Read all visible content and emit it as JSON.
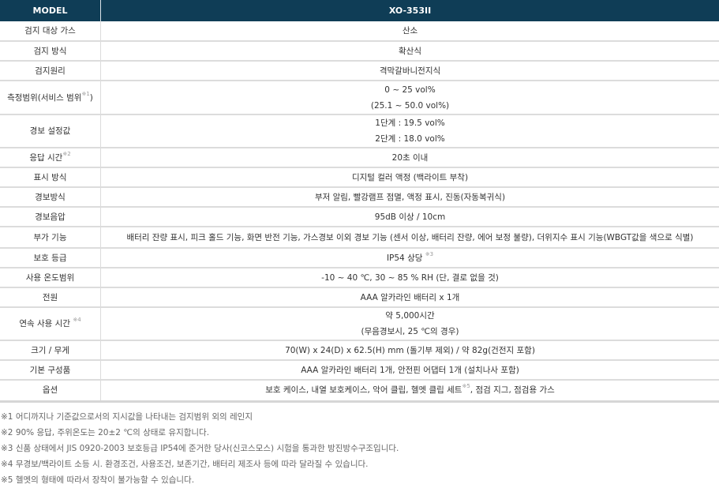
{
  "header": {
    "model_label": "MODEL",
    "model_value": "XO-353II"
  },
  "rows": [
    {
      "label": "검지 대상 가스",
      "values": [
        "산소"
      ]
    },
    {
      "label": "검지 방식",
      "values": [
        "확산식"
      ]
    },
    {
      "label": "검지원리",
      "values": [
        "격막갈바니전지식"
      ]
    },
    {
      "label": "측정범위(서비스 범위",
      "label_sup": "※1",
      "label_after": ")",
      "values": [
        "0 ~ 25 vol%",
        "(25.1 ~ 50.0 vol%)"
      ]
    },
    {
      "label": "경보 설정값",
      "values": [
        "1단계 : 19.5 vol%",
        "2단계 : 18.0 vol%"
      ]
    },
    {
      "label": "응답 시간",
      "label_sup": "※2",
      "values": [
        "20초 이내"
      ]
    },
    {
      "label": "표시 방식",
      "values": [
        "디지털 컬러 액정 (백라이트 부착)"
      ]
    },
    {
      "label": "경보방식",
      "values": [
        "부저 알림, 빨강램프 점멸, 액정 표시, 진동(자동복귀식)"
      ]
    },
    {
      "label": "경보음압",
      "values": [
        "95dB 이상 / 10cm"
      ]
    },
    {
      "label": "부가 기능",
      "values": [
        "배터리 잔량 표시, 피크 홀드 기능, 화면 반전 기능, 가스경보 이외 경보 기능 (센서 이상, 배터리 잔량, 에어 보정 불량), 더위지수 표시 기능(WBGT값을 색으로 식별)"
      ]
    },
    {
      "label": "보호 등급",
      "values": [
        "IP54 상당 "
      ],
      "value_sup": "※3"
    },
    {
      "label": "사용 온도범위",
      "values": [
        "-10 ~ 40 ℃, 30 ~ 85 % RH (단, 결로 없을 것)"
      ]
    },
    {
      "label": "전원",
      "values": [
        "AAA 알카라인 배터리 x 1개"
      ]
    },
    {
      "label": "연속 사용 시간 ",
      "label_sup": "※4",
      "values": [
        "약 5,000시간",
        "(무음경보시, 25 ℃의 경우)"
      ]
    },
    {
      "label": "크기 / 무게",
      "values": [
        "70(W) x 24(D) x 62.5(H) mm (돌기부 제외) / 약 82g(건전지 포함)"
      ]
    },
    {
      "label": "기본 구성품",
      "values": [
        "AAA 알카라인 배터리 1개, 안전핀 어댑터 1개 (설치나사 포함)"
      ]
    },
    {
      "label": "옵션",
      "values": [
        "보호 케이스, 내열 보호케이스, 악어 클립, 헬멧 클립 세트"
      ],
      "value_sup": "※5",
      "value_after": ", 점검 지그, 점검용 가스"
    }
  ],
  "notes": [
    "※1 어디까지나 기준값으로서의 지시값을 나타내는 검지범위 외의 레인지",
    "※2 90% 응답, 주위온도는 20±2 ℃의 상태로 유지합니다.",
    "※3 신품 상태에서 JIS 0920-2003 보호등급 IP54에 준거한 당사(신코스모스) 시험을 통과한 방진방수구조입니다.",
    "※4 무경보/백라이트 소등 시. 환경조건, 사용조건, 보존기간, 배터리 제조사 등에 따라 달라질 수 있습니다.",
    "※5 헬멧의 형태에 따라서 장착이 불가능할 수 있습니다."
  ],
  "colors": {
    "header_bg": "#0f3d56",
    "border": "#dcdcdc"
  }
}
